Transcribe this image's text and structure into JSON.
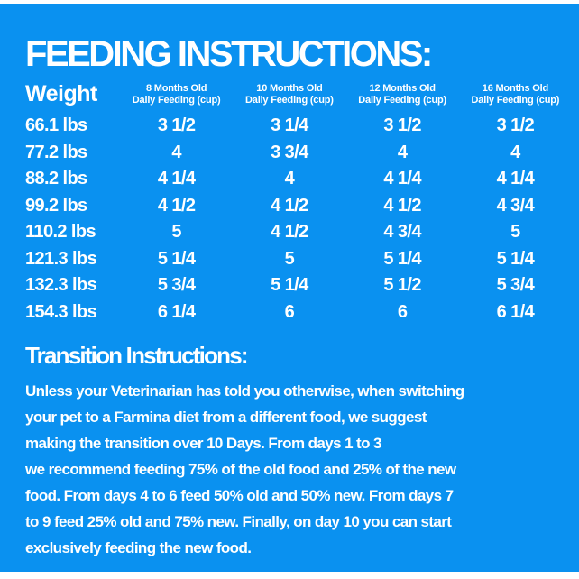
{
  "page": {
    "background_color": "#0a91f0",
    "frame_color": "#ffffff",
    "text_color": "#ffffff"
  },
  "feeding": {
    "title": "FEEDING INSTRUCTIONS:",
    "table": {
      "weight_header": "Weight",
      "age_columns": [
        {
          "line1": "8 Months Old",
          "line2": "Daily Feeding (cup)"
        },
        {
          "line1": "10 Months Old",
          "line2": "Daily Feeding (cup)"
        },
        {
          "line1": "12 Months Old",
          "line2": "Daily Feeding (cup)"
        },
        {
          "line1": "16 Months Old",
          "line2": "Daily Feeding (cup)"
        }
      ],
      "rows": [
        {
          "weight": "66.1 lbs",
          "values": [
            "3 1/2",
            "3 1/4",
            "3 1/2",
            "3 1/2"
          ]
        },
        {
          "weight": "77.2 lbs",
          "values": [
            "4",
            "3 3/4",
            "4",
            "4"
          ]
        },
        {
          "weight": "88.2 lbs",
          "values": [
            "4 1/4",
            "4",
            "4 1/4",
            "4 1/4"
          ]
        },
        {
          "weight": "99.2 lbs",
          "values": [
            "4 1/2",
            "4 1/2",
            "4 1/2",
            "4 3/4"
          ]
        },
        {
          "weight": "110.2 lbs",
          "values": [
            "5",
            "4 1/2",
            "4 3/4",
            "5"
          ]
        },
        {
          "weight": "121.3 lbs",
          "values": [
            "5 1/4",
            "5",
            "5 1/4",
            "5 1/4"
          ]
        },
        {
          "weight": "132.3 lbs",
          "values": [
            "5 3/4",
            "5 1/4",
            "5 1/2",
            "5 3/4"
          ]
        },
        {
          "weight": "154.3 lbs",
          "values": [
            "6 1/4",
            "6",
            "6",
            "6 1/4"
          ]
        }
      ]
    }
  },
  "transition": {
    "title": "Transition Instructions:",
    "lines": [
      "Unless your Veterinarian has told you otherwise, when switching",
      "your pet to a Farmina diet from a different food, we suggest",
      "making the transition over 10 Days. From days 1 to 3",
      "we recommend feeding 75% of the old food and 25% of the new",
      "food. From days 4 to 6 feed 50% old and 50% new. From days 7",
      "to 9 feed 25% old and 75% new. Finally, on day 10 you can start",
      "exclusively feeding the new food."
    ]
  }
}
